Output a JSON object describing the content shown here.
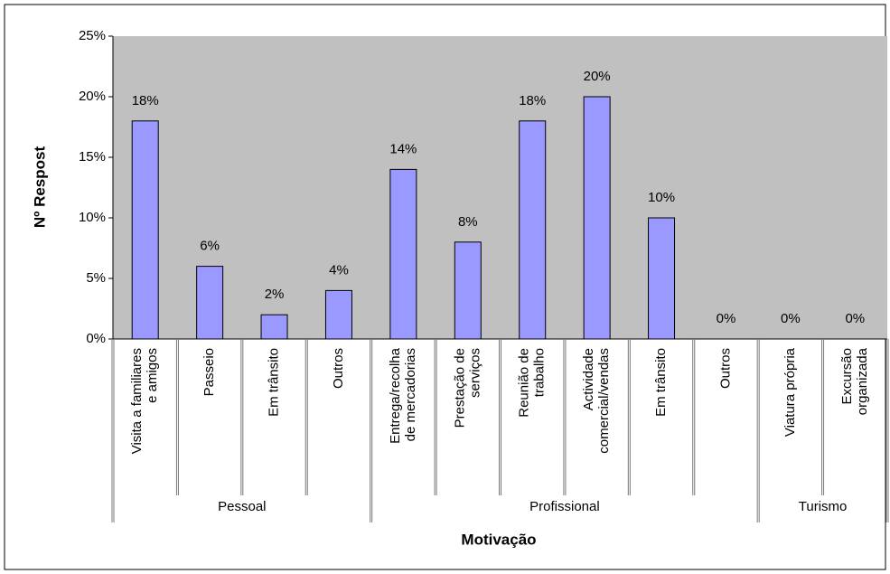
{
  "chart_data": {
    "type": "bar",
    "x_label": "Motivação",
    "y_label": "Nº Respost",
    "categories": [
      [
        "Visita a familiares",
        "e amigos"
      ],
      [
        "Passeio"
      ],
      [
        "Em trânsito"
      ],
      [
        "Outros"
      ],
      [
        "Entrega/recolha",
        "de mercadorias"
      ],
      [
        "Prestação de",
        "serviços"
      ],
      [
        "Reunião de",
        "trabalho"
      ],
      [
        "Actividade",
        "comercial/vendas"
      ],
      [
        "Em trânsito"
      ],
      [
        "Outros"
      ],
      [
        "Viatura própria"
      ],
      [
        "Excursão",
        "organizada"
      ]
    ],
    "groups": [
      {
        "name": "Pessoal",
        "size": 4
      },
      {
        "name": "Profissional",
        "size": 6
      },
      {
        "name": "Turismo",
        "size": 2
      }
    ],
    "values": [
      18,
      6,
      2,
      4,
      14,
      8,
      18,
      20,
      10,
      0,
      0,
      0
    ],
    "value_labels": [
      "18%",
      "6%",
      "2%",
      "4%",
      "14%",
      "8%",
      "18%",
      "20%",
      "10%",
      "0%",
      "0%",
      "0%"
    ],
    "color": "#9999ff",
    "ylim": [
      0,
      25
    ],
    "yticks": [
      {
        "value": 0,
        "label": "0%"
      },
      {
        "value": 5,
        "label": "5%"
      },
      {
        "value": 10,
        "label": "10%"
      },
      {
        "value": 15,
        "label": "15%"
      },
      {
        "value": 20,
        "label": "20%"
      },
      {
        "value": 25,
        "label": "25%"
      }
    ]
  }
}
